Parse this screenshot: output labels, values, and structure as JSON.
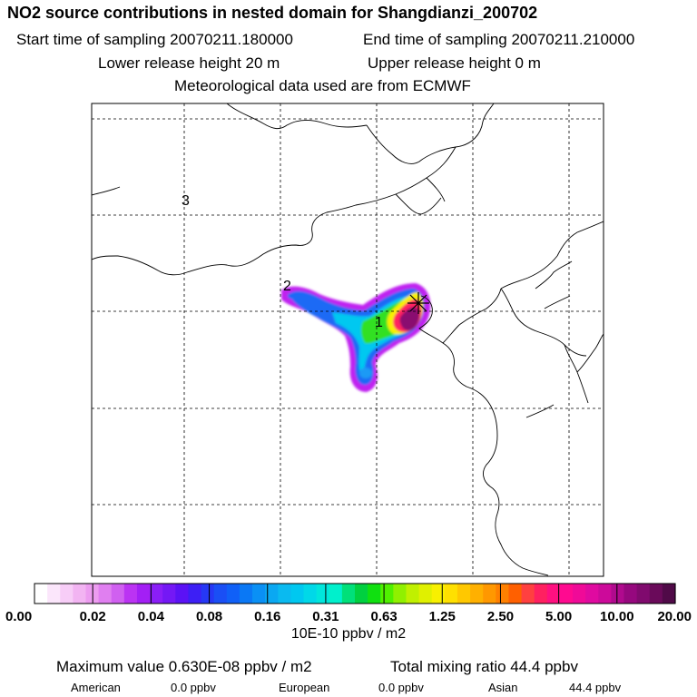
{
  "header": {
    "title": "NO2 source contributions in nested domain for Shangdianzi_200702",
    "start_sampling": "Start time of sampling 20070211.180000",
    "end_sampling": "End time of sampling 20070211.210000",
    "lower_release": "Lower release height   20 m",
    "upper_release": "Upper release height    0 m",
    "met_data": "Meteorological data used are from ECMWF"
  },
  "chart_data": {
    "type": "heatmap",
    "title": "NO2 source contributions in nested domain for Shangdianzi_200702",
    "colorbar": {
      "tick_labels": [
        "0.00",
        "0.02",
        "0.04",
        "0.08",
        "0.16",
        "0.31",
        "0.63",
        "1.25",
        "2.50",
        "5.00",
        "10.00",
        "20.00"
      ],
      "unit": "10E-10 ppbv / m2",
      "colors": [
        "#ffffff",
        "#fbe6fb",
        "#f7cdf7",
        "#f2b4f2",
        "#ec9cf0",
        "#e07ff0",
        "#d060f0",
        "#bb33f3",
        "#a31ff5",
        "#8a1ef7",
        "#7418f5",
        "#5b12f5",
        "#3d1ff5",
        "#2638f5",
        "#1a4ff5",
        "#1060f7",
        "#0a78f5",
        "#0a90f5",
        "#0aa8f2",
        "#0abaf0",
        "#00c8f0",
        "#00d8e8",
        "#00e6dc",
        "#00f0cc",
        "#00e07a",
        "#00d040",
        "#10e010",
        "#50f000",
        "#90f000",
        "#c0f000",
        "#e0f000",
        "#f8f000",
        "#ffe000",
        "#ffc800",
        "#ffb000",
        "#ff9800",
        "#ff8000",
        "#ff6000",
        "#ff4040",
        "#ff2060",
        "#ff1080",
        "#ff0a90",
        "#f00a98",
        "#e00aa0",
        "#cc0a9a",
        "#b00a8e",
        "#96087e",
        "#800a6e",
        "#6a0a5a",
        "#500a48"
      ]
    },
    "receptor_markers": [
      {
        "label": "1"
      },
      {
        "label": "2"
      },
      {
        "label": "3"
      }
    ],
    "gridlines": "dashed",
    "axis_tick_labels": false
  },
  "footer": {
    "max_value": "Maximum value  0.630E-08 ppbv / m2",
    "total_mixing": "Total mixing ratio       44.4 ppbv",
    "regions": [
      {
        "name": "American",
        "value": "0.0 ppbv"
      },
      {
        "name": "European",
        "value": "0.0 ppbv"
      },
      {
        "name": "Asian",
        "value": "44.4 ppbv"
      }
    ]
  }
}
